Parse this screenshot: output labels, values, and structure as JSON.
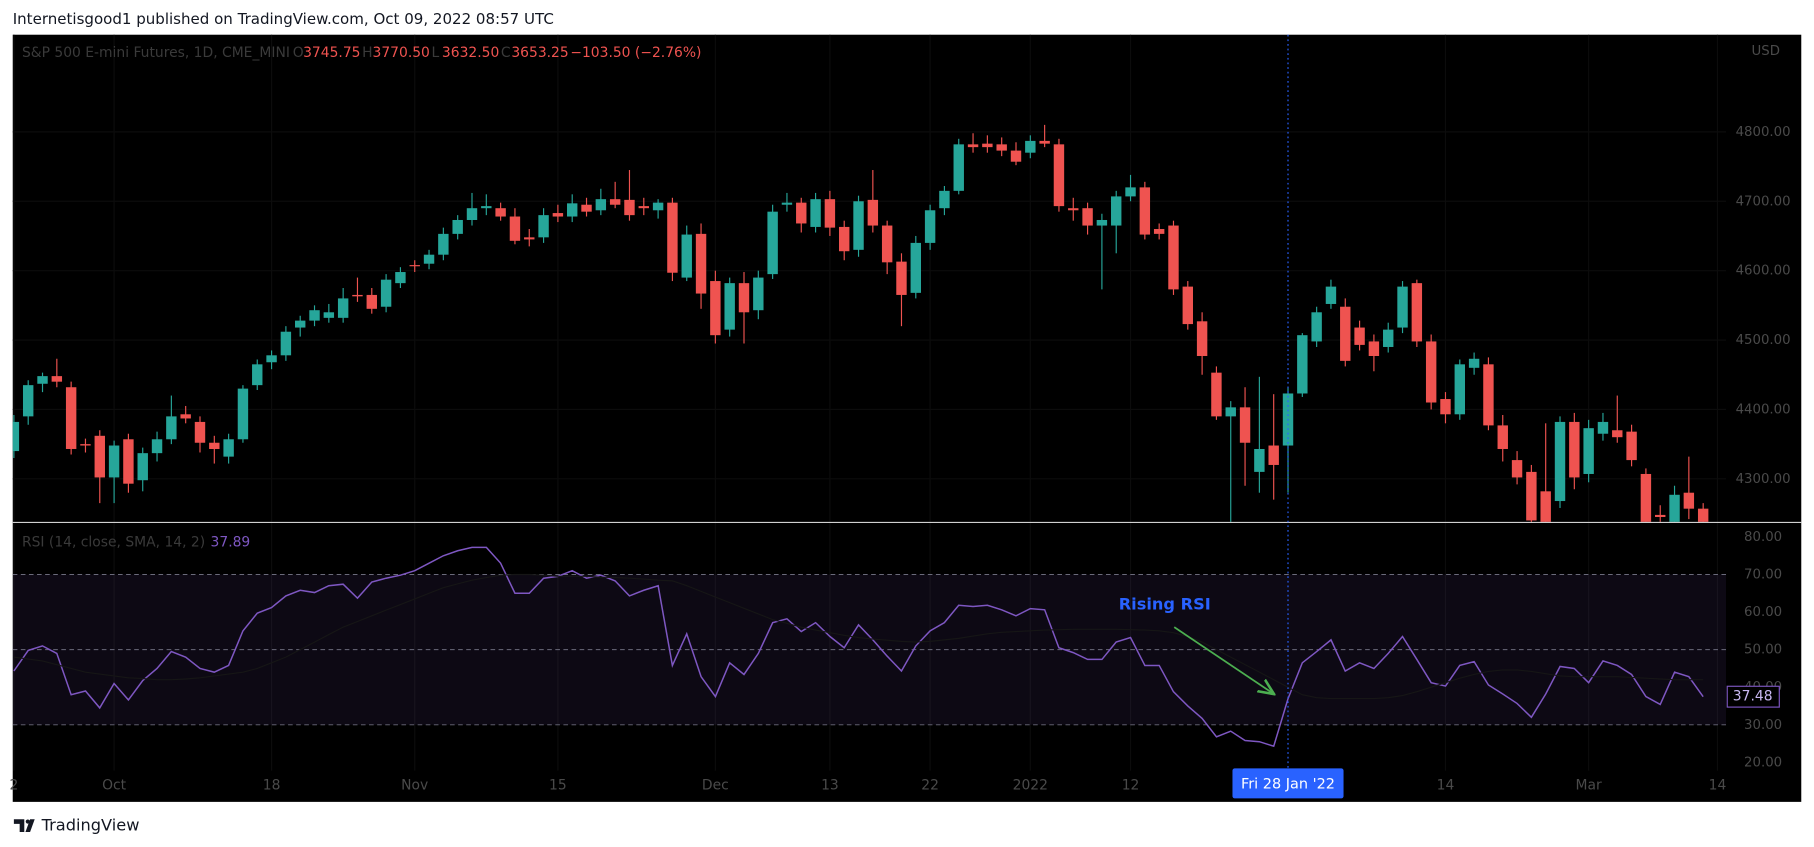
{
  "header": {
    "text": "Internetisgood1 published on TradingView.com, Oct 09, 2022 08:57 UTC"
  },
  "footer": {
    "brand": "TradingView"
  },
  "chart_data": [
    {
      "type": "candlestick",
      "title": "S&P 500 E-mini Futures, 1D, CME_MINI",
      "legend": [
        {
          "label": "O",
          "value": "3745.75"
        },
        {
          "label": "H",
          "value": "3770.50"
        },
        {
          "label": "L",
          "value": "3632.50"
        },
        {
          "label": "C",
          "value": "3653.25"
        }
      ],
      "change": "−103.50 (−2.76%)",
      "currency": "USD",
      "up_color": "#26a69a",
      "down_color": "#ef5350",
      "grid": true,
      "xlim": [
        0,
        119.6
      ],
      "ylim": [
        4238,
        4940
      ],
      "yticks": [
        {
          "value": 4300,
          "label": "4300.00"
        },
        {
          "value": 4400,
          "label": "4400.00"
        },
        {
          "value": 4500,
          "label": "4500.00"
        },
        {
          "value": 4600,
          "label": "4600.00"
        },
        {
          "value": 4700,
          "label": "4700.00"
        },
        {
          "value": 4800,
          "label": "4800.00"
        }
      ],
      "candles": [
        [
          4340,
          4392,
          4330,
          4382
        ],
        [
          4390,
          4442,
          4378,
          4435
        ],
        [
          4437,
          4453,
          4425,
          4448
        ],
        [
          4448,
          4473,
          4432,
          4440
        ],
        [
          4432,
          4440,
          4335,
          4343
        ],
        [
          4350,
          4358,
          4338,
          4348
        ],
        [
          4362,
          4370,
          4265,
          4302
        ],
        [
          4302,
          4355,
          4265,
          4348
        ],
        [
          4357,
          4365,
          4280,
          4293
        ],
        [
          4298,
          4345,
          4282,
          4337
        ],
        [
          4337,
          4368,
          4325,
          4357
        ],
        [
          4357,
          4420,
          4350,
          4390
        ],
        [
          4393,
          4405,
          4380,
          4387
        ],
        [
          4382,
          4390,
          4338,
          4352
        ],
        [
          4352,
          4362,
          4322,
          4343
        ],
        [
          4332,
          4365,
          4322,
          4357
        ],
        [
          4357,
          4435,
          4352,
          4430
        ],
        [
          4435,
          4472,
          4428,
          4465
        ],
        [
          4468,
          4485,
          4458,
          4478
        ],
        [
          4478,
          4520,
          4470,
          4512
        ],
        [
          4518,
          4535,
          4505,
          4528
        ],
        [
          4528,
          4550,
          4520,
          4543
        ],
        [
          4532,
          4552,
          4525,
          4540
        ],
        [
          4532,
          4575,
          4525,
          4560
        ],
        [
          4565,
          4590,
          4555,
          4563
        ],
        [
          4565,
          4575,
          4538,
          4545
        ],
        [
          4548,
          4595,
          4540,
          4587
        ],
        [
          4582,
          4605,
          4575,
          4598
        ],
        [
          4608,
          4615,
          4598,
          4607
        ],
        [
          4610,
          4630,
          4602,
          4623
        ],
        [
          4623,
          4662,
          4615,
          4653
        ],
        [
          4653,
          4680,
          4645,
          4673
        ],
        [
          4673,
          4712,
          4665,
          4690
        ],
        [
          4690,
          4710,
          4680,
          4693
        ],
        [
          4690,
          4698,
          4672,
          4678
        ],
        [
          4678,
          4690,
          4638,
          4643
        ],
        [
          4648,
          4660,
          4635,
          4645
        ],
        [
          4648,
          4690,
          4640,
          4680
        ],
        [
          4683,
          4695,
          4670,
          4678
        ],
        [
          4678,
          4710,
          4670,
          4697
        ],
        [
          4695,
          4705,
          4678,
          4685
        ],
        [
          4687,
          4718,
          4680,
          4703
        ],
        [
          4703,
          4728,
          4690,
          4695
        ],
        [
          4702,
          4745,
          4672,
          4680
        ],
        [
          4693,
          4705,
          4680,
          4690
        ],
        [
          4687,
          4703,
          4675,
          4698
        ],
        [
          4698,
          4705,
          4585,
          4597
        ],
        [
          4590,
          4665,
          4585,
          4652
        ],
        [
          4653,
          4668,
          4545,
          4567
        ],
        [
          4585,
          4600,
          4495,
          4507
        ],
        [
          4515,
          4590,
          4505,
          4582
        ],
        [
          4582,
          4598,
          4495,
          4540
        ],
        [
          4543,
          4600,
          4530,
          4590
        ],
        [
          4595,
          4695,
          4588,
          4685
        ],
        [
          4695,
          4712,
          4685,
          4698
        ],
        [
          4698,
          4705,
          4655,
          4668
        ],
        [
          4663,
          4712,
          4655,
          4703
        ],
        [
          4703,
          4715,
          4650,
          4662
        ],
        [
          4663,
          4672,
          4615,
          4628
        ],
        [
          4630,
          4708,
          4620,
          4700
        ],
        [
          4702,
          4745,
          4655,
          4665
        ],
        [
          4665,
          4672,
          4595,
          4612
        ],
        [
          4613,
          4625,
          4520,
          4565
        ],
        [
          4568,
          4650,
          4560,
          4640
        ],
        [
          4640,
          4695,
          4630,
          4687
        ],
        [
          4690,
          4722,
          4680,
          4715
        ],
        [
          4715,
          4790,
          4710,
          4782
        ],
        [
          4782,
          4798,
          4770,
          4778
        ],
        [
          4783,
          4795,
          4770,
          4778
        ],
        [
          4782,
          4792,
          4765,
          4773
        ],
        [
          4773,
          4785,
          4752,
          4757
        ],
        [
          4770,
          4795,
          4762,
          4787
        ],
        [
          4787,
          4810,
          4778,
          4783
        ],
        [
          4782,
          4790,
          4685,
          4693
        ],
        [
          4690,
          4705,
          4672,
          4687
        ],
        [
          4690,
          4698,
          4652,
          4665
        ],
        [
          4665,
          4682,
          4573,
          4673
        ],
        [
          4665,
          4715,
          4625,
          4707
        ],
        [
          4707,
          4738,
          4700,
          4720
        ],
        [
          4720,
          4728,
          4645,
          4652
        ],
        [
          4660,
          4668,
          4645,
          4653
        ],
        [
          4665,
          4672,
          4565,
          4573
        ],
        [
          4577,
          4585,
          4515,
          4523
        ],
        [
          4527,
          4540,
          4450,
          4477
        ],
        [
          4453,
          4462,
          4385,
          4390
        ],
        [
          4390,
          4412,
          4222,
          4403
        ],
        [
          4403,
          4432,
          4290,
          4352
        ],
        [
          4310,
          4447,
          4280,
          4343
        ],
        [
          4348,
          4422,
          4270,
          4320
        ],
        [
          4348,
          4432,
          4280,
          4423
        ],
        [
          4423,
          4510,
          4418,
          4507
        ],
        [
          4498,
          4548,
          4490,
          4540
        ],
        [
          4552,
          4587,
          4545,
          4577
        ],
        [
          4548,
          4560,
          4462,
          4470
        ],
        [
          4518,
          4528,
          4485,
          4493
        ],
        [
          4498,
          4508,
          4455,
          4477
        ],
        [
          4490,
          4525,
          4482,
          4515
        ],
        [
          4518,
          4585,
          4510,
          4577
        ],
        [
          4582,
          4587,
          4490,
          4498
        ],
        [
          4498,
          4508,
          4400,
          4410
        ],
        [
          4415,
          4425,
          4380,
          4393
        ],
        [
          4393,
          4472,
          4385,
          4465
        ],
        [
          4460,
          4482,
          4450,
          4473
        ],
        [
          4465,
          4475,
          4370,
          4377
        ],
        [
          4377,
          4392,
          4325,
          4343
        ],
        [
          4327,
          4340,
          4292,
          4302
        ],
        [
          4310,
          4320,
          4222,
          4240
        ],
        [
          4282,
          4380,
          4222,
          4232
        ],
        [
          4268,
          4390,
          4258,
          4382
        ],
        [
          4382,
          4395,
          4285,
          4302
        ],
        [
          4307,
          4385,
          4295,
          4373
        ],
        [
          4365,
          4395,
          4355,
          4382
        ],
        [
          4370,
          4420,
          4352,
          4360
        ],
        [
          4368,
          4378,
          4318,
          4327
        ],
        [
          4307,
          4315,
          4222,
          4232
        ],
        [
          4248,
          4262,
          4232,
          4245
        ],
        [
          4237,
          4290,
          4225,
          4277
        ],
        [
          4280,
          4332,
          4242,
          4257
        ],
        [
          4257,
          4265,
          4222,
          4237
        ]
      ]
    },
    {
      "type": "line",
      "title": "RSI (14, close, SMA, 14, 2)",
      "legend_value": 37.89,
      "xlim": [
        0,
        119.6
      ],
      "ylim": [
        17.8,
        83.7
      ],
      "yticks": [
        {
          "value": 20,
          "label": "20.00"
        },
        {
          "value": 30,
          "label": "30.00"
        },
        {
          "value": 40,
          "label": "40.00"
        },
        {
          "value": 50,
          "label": "50.00"
        },
        {
          "value": 60,
          "label": "60.00"
        },
        {
          "value": 70,
          "label": "70.00"
        },
        {
          "value": 80,
          "label": "80.00"
        }
      ],
      "band": {
        "low": 30,
        "high": 70,
        "color": "rgba(126,87,194,0.1)"
      },
      "midline": 50,
      "xticks": [
        {
          "value": 0,
          "label": "2"
        },
        {
          "value": 7,
          "label": "Oct"
        },
        {
          "value": 18,
          "label": "18"
        },
        {
          "value": 28,
          "label": "Nov"
        },
        {
          "value": 38,
          "label": "15"
        },
        {
          "value": 49,
          "label": "Dec"
        },
        {
          "value": 57,
          "label": "13"
        },
        {
          "value": 64,
          "label": "22"
        },
        {
          "value": 71,
          "label": "2022"
        },
        {
          "value": 78,
          "label": "12"
        },
        {
          "value": 100,
          "label": "14"
        },
        {
          "value": 110,
          "label": "Mar"
        },
        {
          "value": 119,
          "label": "14"
        }
      ],
      "cursor": {
        "value": 89,
        "label": "Fri 28 Jan '22"
      },
      "annotation": "Rising RSI",
      "series": [
        {
          "color": "#7e57c2",
          "values": [
            44.3,
            49.8,
            51,
            49,
            38,
            39,
            34.5,
            41,
            36.6,
            41.8,
            45,
            49.5,
            48,
            45,
            44,
            45.8,
            55,
            59.7,
            61.2,
            64.3,
            65.8,
            65.2,
            67,
            67.4,
            63.7,
            68,
            69,
            69.8,
            71,
            73,
            75,
            76.3,
            77.2,
            77.2,
            73,
            65,
            65,
            69,
            69.5,
            71,
            69,
            69.8,
            68.3,
            64.3,
            65.8,
            67,
            45.8,
            54.2,
            42.8,
            37.5,
            46.5,
            43.4,
            49,
            57.2,
            58.2,
            54.8,
            57.2,
            53.5,
            50.5,
            56.6,
            52.6,
            48.3,
            44.3,
            51,
            55,
            57.2,
            61.8,
            61.5,
            61.8,
            60.6,
            59,
            60.9,
            60.6,
            50.5,
            49.2,
            47.4,
            47.4,
            52,
            53.2,
            45.8,
            45.8,
            38.8,
            35,
            31.7,
            26.8,
            28.3,
            25.8,
            25.5,
            24.3,
            36.9,
            46.5,
            49.5,
            52.6,
            44.3,
            46.5,
            45,
            49,
            53.5,
            47.4,
            41.2,
            40.3,
            45.8,
            46.8,
            40.6,
            38.2,
            35.7,
            32,
            38.2,
            45.5,
            45,
            41.2,
            47,
            45.8,
            43.4,
            37.5,
            35.4,
            44,
            42.8,
            37.48
          ]
        },
        {
          "color": "#161616",
          "values": [
            48,
            47.5,
            47,
            46,
            45,
            44,
            43.5,
            43,
            42.5,
            42.3,
            42,
            42,
            42.2,
            42.5,
            43,
            43.5,
            44,
            45,
            46.5,
            48,
            50,
            52,
            54,
            56,
            57.5,
            59,
            60.5,
            62,
            63.5,
            65,
            66.5,
            67.5,
            68.5,
            69.2,
            69.8,
            70,
            70,
            69.8,
            69.5,
            69.5,
            69.5,
            69.3,
            69.2,
            69,
            68.8,
            68.5,
            68.3,
            67,
            65.5,
            64,
            62.5,
            61,
            59.5,
            58,
            57,
            56,
            55.2,
            54.5,
            53.8,
            53.2,
            52.8,
            52.5,
            52.2,
            52,
            52.2,
            52.6,
            53,
            53.6,
            54.2,
            54.6,
            54.8,
            55,
            55.2,
            55.3,
            55.4,
            55.4,
            55.4,
            55.4,
            55.3,
            55.2,
            55,
            54.5,
            53.5,
            52,
            50,
            48,
            46,
            44,
            42,
            40,
            38,
            37.2,
            37,
            37,
            37,
            37,
            37.2,
            37.8,
            38.8,
            40,
            41.2,
            42.4,
            43.4,
            44.2,
            44.6,
            44.6,
            44.2,
            43.6,
            43,
            42.8,
            42.8,
            42.8,
            42.8,
            42.6,
            42.4,
            42.2,
            42,
            42,
            42
          ]
        }
      ]
    }
  ]
}
